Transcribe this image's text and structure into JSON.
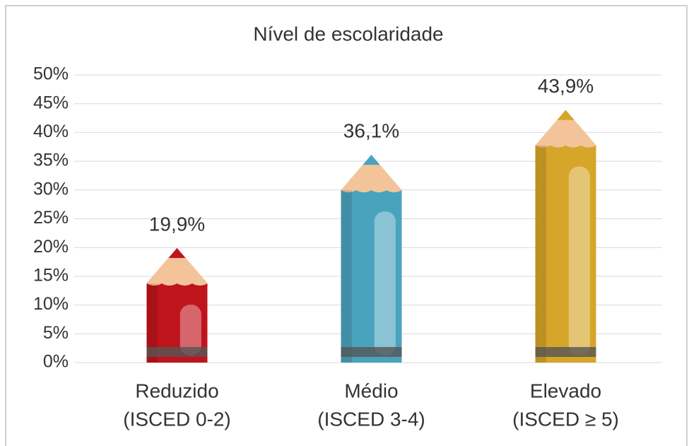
{
  "chart_data": {
    "type": "bar",
    "title": "Nível de escolaridade",
    "categories": [
      [
        "Reduzido",
        "(ISCED 0-2)"
      ],
      [
        "Médio",
        "(ISCED 3-4)"
      ],
      [
        "Elevado",
        "(ISCED ≥ 5)"
      ]
    ],
    "values": [
      19.9,
      36.1,
      43.9
    ],
    "value_labels": [
      "19,9%",
      "36,1%",
      "43,9%"
    ],
    "colors": [
      "#c0141c",
      "#4aa3bd",
      "#d6a62a"
    ],
    "ylim": [
      0,
      50
    ],
    "yticks": [
      {
        "value": 0,
        "label": "0%"
      },
      {
        "value": 5,
        "label": "5%"
      },
      {
        "value": 10,
        "label": "10%"
      },
      {
        "value": 15,
        "label": "15%"
      },
      {
        "value": 20,
        "label": "20%"
      },
      {
        "value": 25,
        "label": "25%"
      },
      {
        "value": 30,
        "label": "30%"
      },
      {
        "value": 35,
        "label": "35%"
      },
      {
        "value": 40,
        "label": "40%"
      },
      {
        "value": 45,
        "label": "45%"
      },
      {
        "value": 50,
        "label": "50%"
      }
    ],
    "grid": true
  }
}
